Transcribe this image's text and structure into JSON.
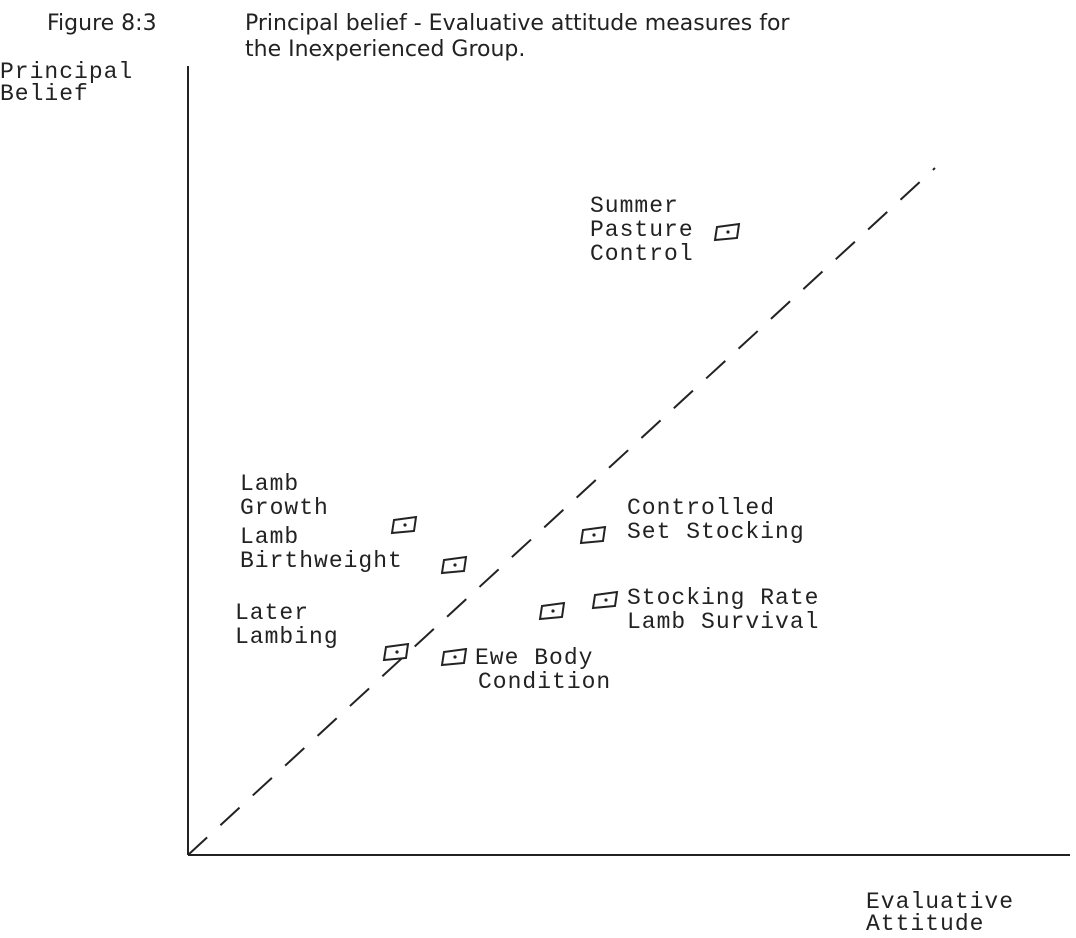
{
  "title": {
    "number": "Figure 8:3",
    "lines": [
      "Principal belief - Evaluative attitude measures for",
      "the Inexperienced Group."
    ]
  },
  "y_axis_label": [
    "Principal",
    "Belief"
  ],
  "x_axis_label": [
    "Evaluative",
    "Attitude"
  ],
  "items": [
    {
      "lines": [
        "Summer",
        "Pasture",
        "Control"
      ]
    },
    {
      "lines": [
        "Lamb",
        "Growth"
      ]
    },
    {
      "lines": [
        "Lamb",
        "Birthweight"
      ]
    },
    {
      "lines": [
        "Later",
        "Lambing"
      ]
    },
    {
      "lines": [
        "Ewe Body",
        "Condition"
      ]
    },
    {
      "lines": [
        "Controlled",
        "Set Stocking"
      ]
    },
    {
      "lines": [
        "Stocking Rate",
        "Lamb Survival"
      ]
    }
  ]
}
